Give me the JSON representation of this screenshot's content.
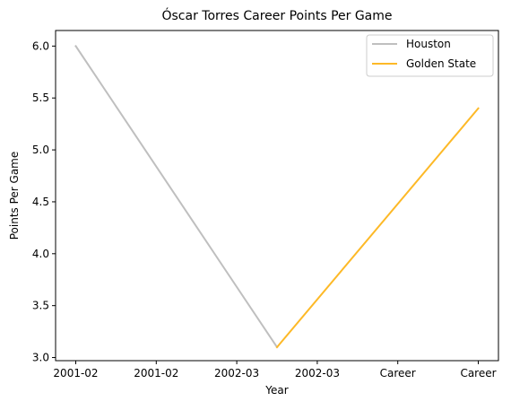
{
  "chart_data": {
    "type": "line",
    "title": "Óscar Torres Career Points Per Game",
    "xlabel": "Year",
    "ylabel": "Points Per Game",
    "categories": [
      "2001-02",
      "2001-02",
      "2002-03",
      "2002-03",
      "Career",
      "Career"
    ],
    "y_ticks": [
      "3.0",
      "3.5",
      "4.0",
      "4.5",
      "5.0",
      "5.5",
      "6.0"
    ],
    "ylim": [
      2.97,
      6.15
    ],
    "grid": false,
    "legend_placement": "top-right",
    "series": [
      {
        "name": "Houston",
        "color": "#bfbfbf",
        "points": [
          {
            "x": 0,
            "y": 6.0
          },
          {
            "x": 2.5,
            "y": 3.1
          }
        ]
      },
      {
        "name": "Golden State",
        "color": "#fdb927",
        "points": [
          {
            "x": 2.5,
            "y": 3.1
          },
          {
            "x": 5,
            "y": 5.4
          }
        ]
      }
    ]
  }
}
